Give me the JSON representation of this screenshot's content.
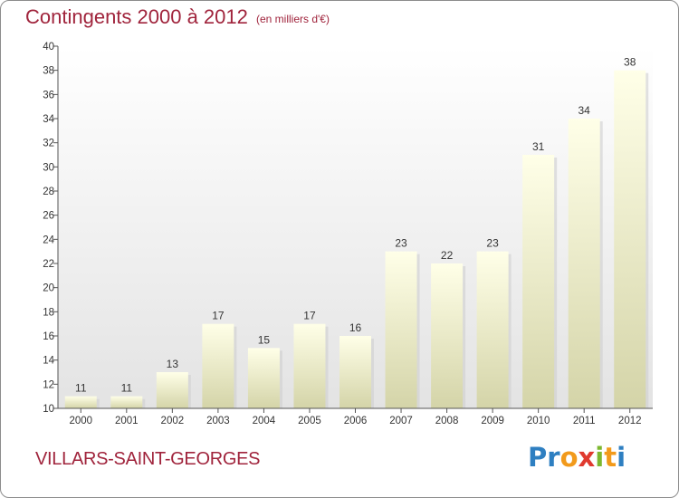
{
  "chart_data": {
    "type": "bar",
    "title": "Contingents 2000 à 2012",
    "subtitle": "(en milliers d'€)",
    "categories": [
      "2000",
      "2001",
      "2002",
      "2003",
      "2004",
      "2005",
      "2006",
      "2007",
      "2008",
      "2009",
      "2010",
      "2011",
      "2012"
    ],
    "values": [
      11,
      11,
      13,
      17,
      15,
      17,
      16,
      23,
      22,
      23,
      31,
      34,
      38
    ],
    "ylim": [
      10,
      40
    ],
    "yticks": [
      10,
      12,
      14,
      16,
      18,
      20,
      22,
      24,
      26,
      28,
      30,
      32,
      34,
      36,
      38,
      40
    ],
    "grid": false,
    "legend": "none",
    "colors": {
      "bar_top": "#ffffe8",
      "bar_bottom": "#d4d4a8",
      "plot_bg_top": "#ffffff",
      "plot_bg_bottom": "#e3e3e3",
      "title": "#a0243c"
    }
  },
  "footer": {
    "commune": "VILLARS-SAINT-GEORGES",
    "brand": [
      {
        "ch": "P",
        "color": "#2e7fc1"
      },
      {
        "ch": "r",
        "color": "#2e7fc1"
      },
      {
        "ch": "o",
        "color": "#f29a1b"
      },
      {
        "ch": "x",
        "color": "#e03a2f"
      },
      {
        "ch": "i",
        "color": "#7cb82f"
      },
      {
        "ch": "t",
        "color": "#f29a1b"
      },
      {
        "ch": "i",
        "color": "#2e7fc1"
      }
    ]
  }
}
